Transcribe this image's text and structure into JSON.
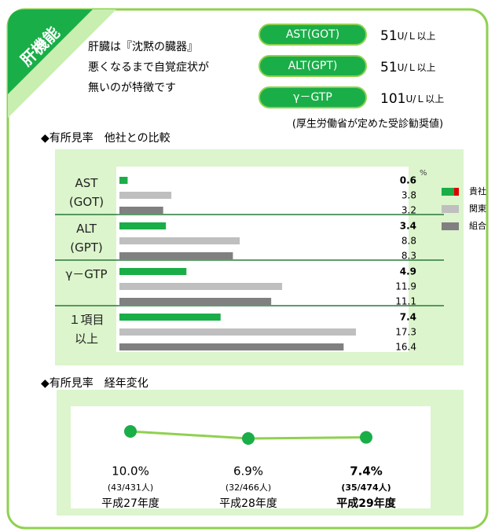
{
  "badge": "肝機能",
  "description": [
    "肝臓は『沈黙の臓器』",
    "悪くなるまで自覚症状が",
    "無いのが特徴です"
  ],
  "thresholds": [
    {
      "label": "AST(GOT)",
      "value": "51",
      "unit": "U/Ｌ以上"
    },
    {
      "label": "ALT(GPT)",
      "value": "51",
      "unit": "U/Ｌ以上"
    },
    {
      "label": "γ－GTP",
      "value": "101",
      "unit": "U/Ｌ以上"
    }
  ],
  "threshold_note": "(厚生労働省が定めた受診勧奨値)",
  "chart_data": [
    {
      "type": "bar",
      "orientation": "horizontal",
      "title": "◆有所見率　他社との比較",
      "unit": "%",
      "categories": [
        "AST\n(GOT)",
        "ALT\n(GPT)",
        "γ－GTP",
        "１項目\n以上"
      ],
      "series": [
        {
          "name": "貴社",
          "color": "#1aae48",
          "values": [
            0.6,
            3.4,
            4.9,
            7.4
          ],
          "bold": true
        },
        {
          "name": "関東",
          "color": "#bfbfbf",
          "values": [
            3.8,
            8.8,
            11.9,
            17.3
          ]
        },
        {
          "name": "組合",
          "color": "#808080",
          "values": [
            3.2,
            8.3,
            11.1,
            16.4
          ]
        }
      ],
      "xlim": [
        0,
        20
      ]
    },
    {
      "type": "line",
      "title": "◆有所見率　経年変化",
      "categories": [
        "平成27年度",
        "平成28年度",
        "平成29年度"
      ],
      "values": [
        10.0,
        6.9,
        7.4
      ],
      "value_labels": [
        "10.0%",
        "6.9%",
        "7.4%"
      ],
      "counts": [
        "(43/431人)",
        "(32/466人)",
        "(35/474人)"
      ],
      "color": "#8fd14f",
      "marker_color": "#1aae48",
      "highlight_index": 2,
      "ylim": [
        0,
        20
      ]
    }
  ]
}
